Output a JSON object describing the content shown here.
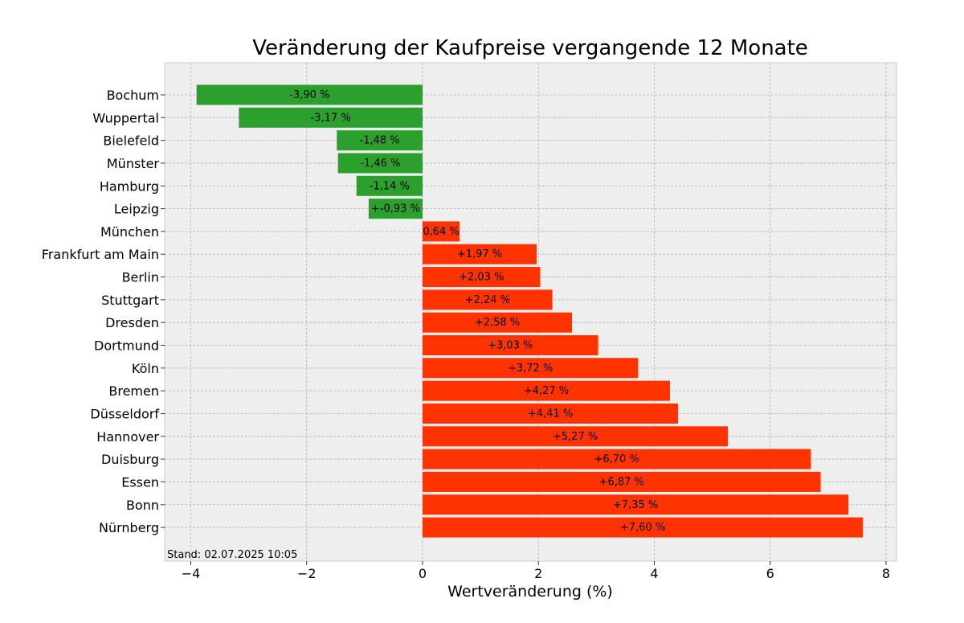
{
  "chart_data": {
    "type": "bar",
    "orientation": "horizontal",
    "title": "Veränderung der Kaufpreise vergangende 12 Monate",
    "xlabel": "Wertveränderung (%)",
    "ylabel": "",
    "xlim": [
      -4.45,
      8.18
    ],
    "xticks": [
      -4,
      -2,
      0,
      2,
      4,
      6,
      8
    ],
    "xtick_labels": [
      "−4",
      "−2",
      "0",
      "2",
      "4",
      "6",
      "8"
    ],
    "grid": true,
    "categories": [
      "Bochum",
      "Wuppertal",
      "Bielefeld",
      "Münster",
      "Hamburg",
      "Leipzig",
      "München",
      "Frankfurt am Main",
      "Berlin",
      "Stuttgart",
      "Dresden",
      "Dortmund",
      "Köln",
      "Bremen",
      "Düsseldorf",
      "Hannover",
      "Duisburg",
      "Essen",
      "Bonn",
      "Nürnberg"
    ],
    "values": [
      -3.9,
      -3.17,
      -1.48,
      -1.46,
      -1.14,
      -0.93,
      0.64,
      1.97,
      2.03,
      2.24,
      2.58,
      3.03,
      3.72,
      4.27,
      4.41,
      5.27,
      6.7,
      6.87,
      7.35,
      7.6
    ],
    "data_labels": [
      "-3,90 %",
      "-3,17 %",
      "-1,48 %",
      "-1,46 %",
      "-1,14 %",
      "+-0,93 %",
      "0,64 %",
      "+1,97 %",
      "+2,03 %",
      "+2,24 %",
      "+2,58 %",
      "+3,03 %",
      "+3,72 %",
      "+4,27 %",
      "+4,41 %",
      "+5,27 %",
      "+6,70 %",
      "+6,87 %",
      "+7,35 %",
      "+7,60 %"
    ],
    "colors": {
      "negative": "#2ca02c",
      "positive": "#ff3300",
      "plot_background": "#eeeeee",
      "grid": "#b0b0b0"
    },
    "footnote": "Stand: 02.07.2025 10:05"
  }
}
